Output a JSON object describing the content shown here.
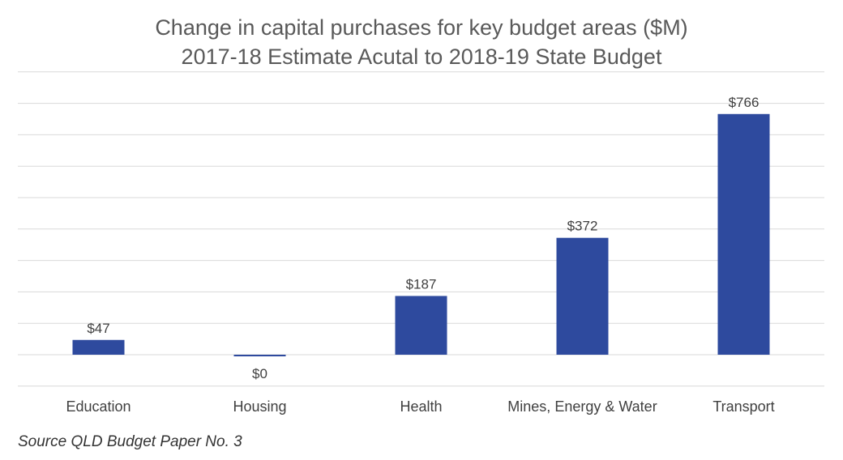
{
  "chart_data": {
    "type": "bar",
    "title": "Change in capital purchases for key budget areas ($M)",
    "subtitle": "2017-18 Estimate Acutal to 2018-19 State Budget",
    "categories": [
      "Education",
      "Housing",
      "Health",
      "Mines, Energy & Water",
      "Transport"
    ],
    "values": [
      47,
      0,
      187,
      372,
      766
    ],
    "data_labels": [
      "$47",
      "$0",
      "$187",
      "$372",
      "$766"
    ],
    "ylim": [
      -100,
      900
    ],
    "grid": true,
    "bar_color": "#2e4a9e",
    "gridline_color": "#d9d9d9"
  },
  "source": "Source QLD Budget Paper No. 3"
}
